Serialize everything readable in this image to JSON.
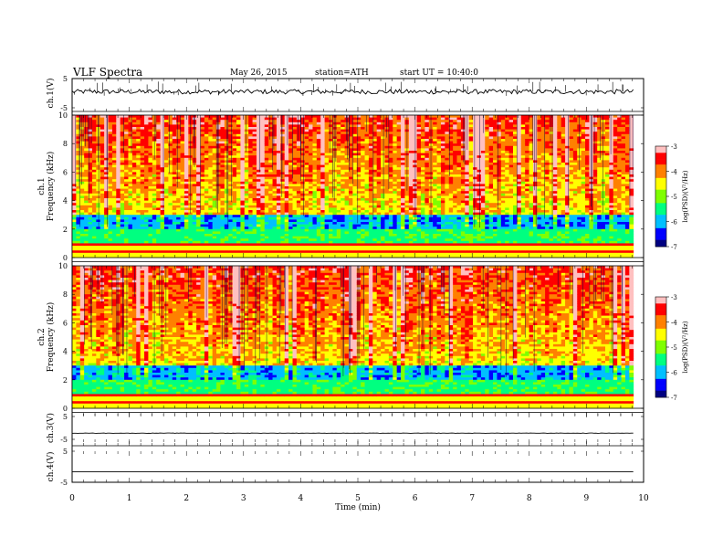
{
  "header": {
    "title": "VLF  Spectra",
    "date": "May 26, 2015",
    "station": "station=ATH",
    "start": "start  UT =   10:40:0"
  },
  "chart_data": {
    "type": "heatmap",
    "xlabel": "Time  (min)",
    "xlim": [
      0,
      10
    ],
    "x_ticks": [
      "0",
      "1",
      "2",
      "3",
      "4",
      "5",
      "6",
      "7",
      "8",
      "9",
      "10"
    ],
    "data_end_min": 9.82,
    "panels": [
      {
        "id": "ch1-waveform",
        "type": "line",
        "ylabel": "ch.1(V)",
        "ylim": [
          -5,
          5
        ],
        "y_ticks": [
          "5",
          "-5"
        ],
        "mean": 0.5,
        "noise": 0.8,
        "spike_max": 5
      },
      {
        "id": "ch1-spectrogram",
        "type": "heatmap",
        "ylabel": "ch.1",
        "ylabel2": "Frequency  (kHz)",
        "ylim": [
          0,
          10
        ],
        "y_ticks": [
          "0",
          "2",
          "4",
          "6",
          "8",
          "10"
        ],
        "colorbar": {
          "label": "log(PSD)(V²/Hz)",
          "range": [
            -7,
            -3
          ],
          "ticks": [
            "-3",
            "-4",
            "-5",
            "-6",
            "-7"
          ]
        }
      },
      {
        "id": "ch2-spectrogram",
        "type": "heatmap",
        "ylabel": "ch.2",
        "ylabel2": "Frequency  (kHz)",
        "ylim": [
          0,
          10
        ],
        "y_ticks": [
          "0",
          "2",
          "4",
          "6",
          "8",
          "10"
        ],
        "colorbar": {
          "label": "log(PSD)(V²/Hz)",
          "range": [
            -7,
            -3
          ],
          "ticks": [
            "-3",
            "-4",
            "-5",
            "-6",
            "-7"
          ]
        }
      },
      {
        "id": "ch3-waveform",
        "type": "line",
        "ylabel": "ch.3(V)",
        "ylim": [
          -5,
          5
        ],
        "y_ticks": [
          "5",
          "-5"
        ],
        "mean": -2.3,
        "noise": 0.05
      },
      {
        "id": "ch4-waveform",
        "type": "line",
        "ylabel": "ch.4(V)",
        "ylim": [
          -5,
          5
        ],
        "y_ticks": [
          "5",
          "-5"
        ],
        "mean": -1.6,
        "noise": 0.0
      }
    ],
    "colormap": [
      "#000080",
      "#0000ff",
      "#00bfff",
      "#00ff80",
      "#7fff00",
      "#ffff00",
      "#ff8000",
      "#ff0000",
      "#ffc0c0"
    ]
  }
}
